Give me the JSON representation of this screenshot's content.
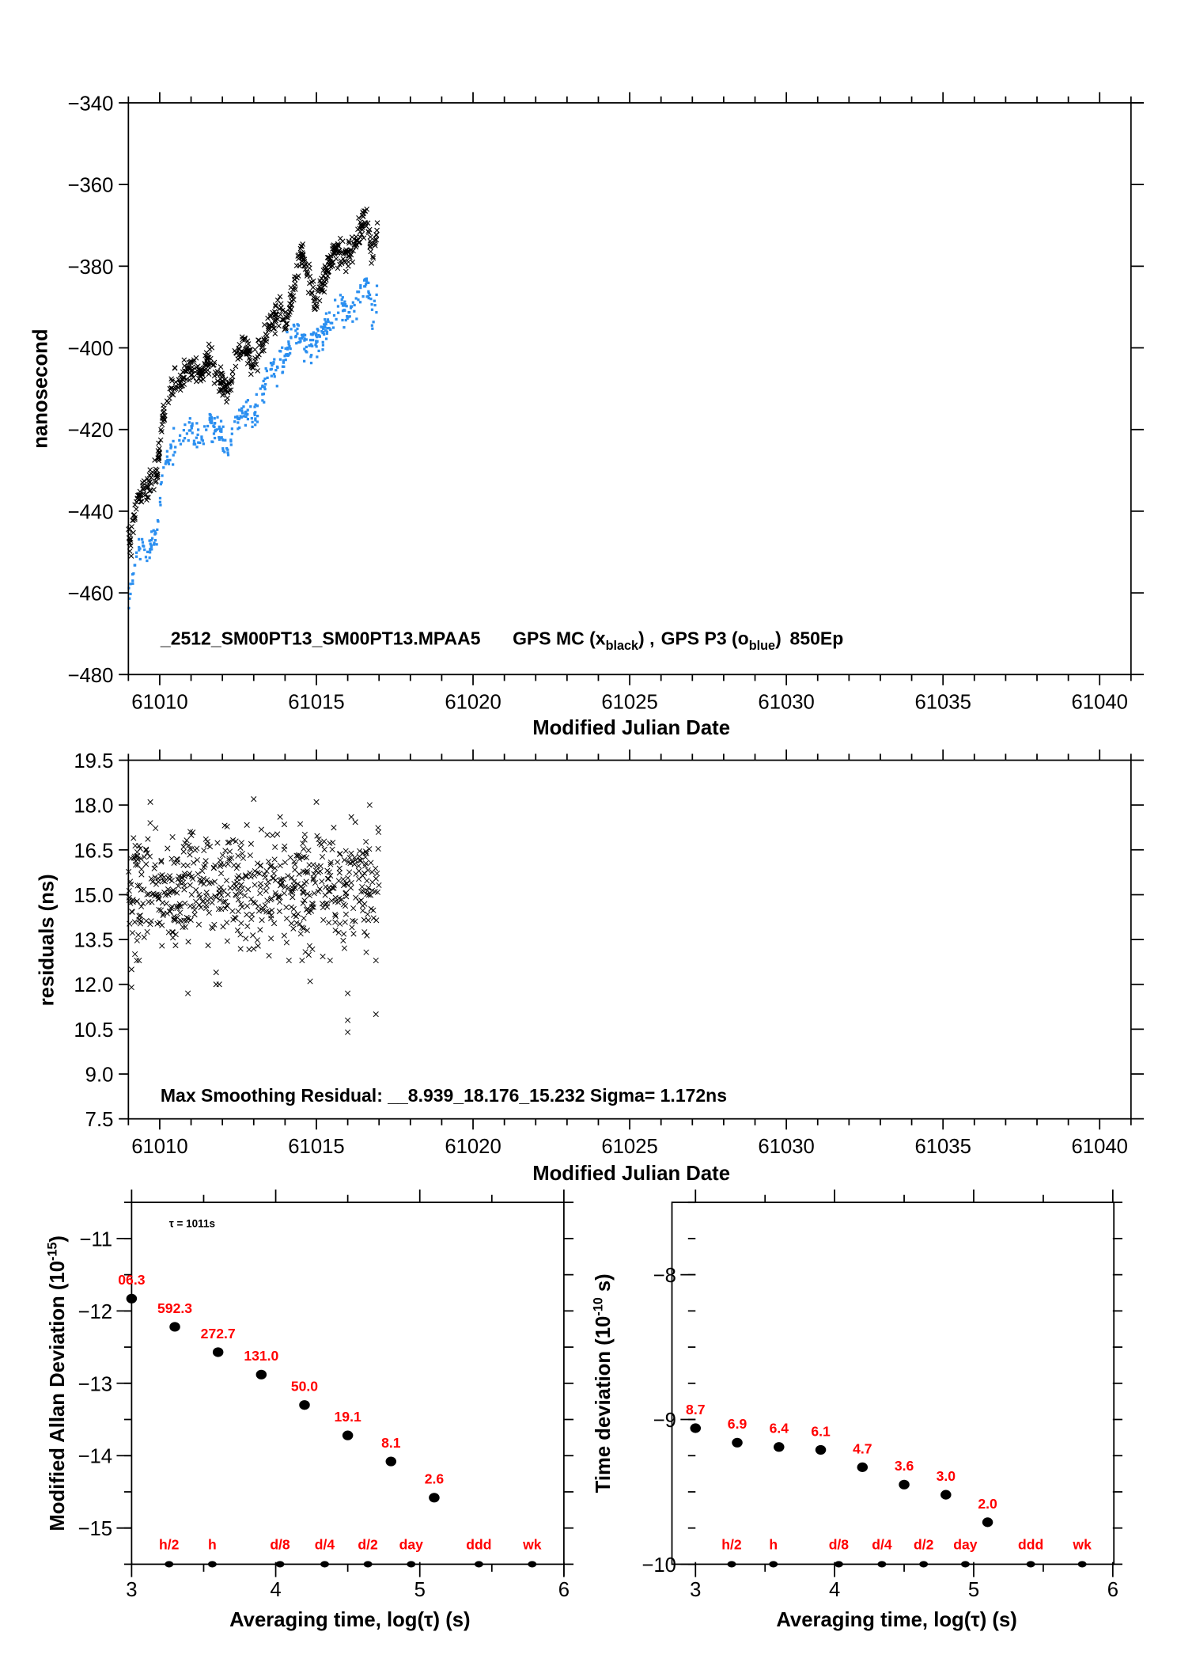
{
  "chart_data": [
    {
      "type": "scatter",
      "id": "clock-offset",
      "title": "",
      "annotation": "_2512_SM00PT13_SM00PT13.MPAA5    GPS MC (x",
      "annotation_parts": {
        "station": "_2512_SM00PT13_SM00PT13.MPAA5",
        "series1_prefix": "GPS MC (x",
        "series1_sub": "black",
        "series1_suffix": ") ,",
        "series2_prefix": "GPS P3 (o",
        "series2_sub": "blue",
        "series2_suffix": ")",
        "tag": "850Ep"
      },
      "xlabel": "Modified Julian Date",
      "ylabel": "nanosecond",
      "xlim": [
        61009,
        61041
      ],
      "ylim": [
        -480,
        -340
      ],
      "xticks": [
        61010,
        61015,
        61020,
        61025,
        61030,
        61035,
        61040
      ],
      "xtick_labels": [
        "61010",
        "61015",
        "61020",
        "61025",
        "61030",
        "61035",
        "61040"
      ],
      "yticks": [
        -340,
        -360,
        -380,
        -400,
        -420,
        -440,
        -460,
        -480
      ],
      "ytick_labels": [
        "−340",
        "−360",
        "−380",
        "−400",
        "−420",
        "−440",
        "−460",
        "−480"
      ],
      "series": [
        {
          "name": "GPS MC",
          "marker": "x",
          "color": "#000000",
          "trend": [
            [
              61009.0,
              -449
            ],
            [
              61009.3,
              -437
            ],
            [
              61009.6,
              -434
            ],
            [
              61009.9,
              -432
            ],
            [
              61010.1,
              -417
            ],
            [
              61010.4,
              -409
            ],
            [
              61010.7,
              -408
            ],
            [
              61011.0,
              -405
            ],
            [
              61011.3,
              -407
            ],
            [
              61011.6,
              -402
            ],
            [
              61011.9,
              -408
            ],
            [
              61012.2,
              -411
            ],
            [
              61012.4,
              -404
            ],
            [
              61012.7,
              -399
            ],
            [
              61013.0,
              -404
            ],
            [
              61013.3,
              -398
            ],
            [
              61013.5,
              -395
            ],
            [
              61013.8,
              -390
            ],
            [
              61014.0,
              -394
            ],
            [
              61014.3,
              -385
            ],
            [
              61014.5,
              -376
            ],
            [
              61014.8,
              -384
            ],
            [
              61015.0,
              -390
            ],
            [
              61015.3,
              -381
            ],
            [
              61015.6,
              -376
            ],
            [
              61015.8,
              -378
            ],
            [
              61016.1,
              -376
            ],
            [
              61016.3,
              -374
            ],
            [
              61016.6,
              -367
            ],
            [
              61016.8,
              -378
            ],
            [
              61016.95,
              -370
            ]
          ]
        },
        {
          "name": "GPS P3",
          "marker": "o",
          "color": "#2b8ff0",
          "trend": [
            [
              61009.0,
              -461
            ],
            [
              61009.3,
              -450
            ],
            [
              61009.6,
              -449
            ],
            [
              61009.9,
              -446
            ],
            [
              61010.1,
              -430
            ],
            [
              61010.4,
              -426
            ],
            [
              61010.7,
              -422
            ],
            [
              61011.0,
              -420
            ],
            [
              61011.3,
              -423
            ],
            [
              61011.6,
              -419
            ],
            [
              61011.9,
              -421
            ],
            [
              61012.2,
              -426
            ],
            [
              61012.4,
              -418
            ],
            [
              61012.7,
              -415
            ],
            [
              61013.0,
              -418
            ],
            [
              61013.3,
              -411
            ],
            [
              61013.5,
              -404
            ],
            [
              61013.8,
              -406
            ],
            [
              61014.0,
              -402
            ],
            [
              61014.3,
              -395
            ],
            [
              61014.5,
              -397
            ],
            [
              61014.8,
              -400
            ],
            [
              61015.0,
              -398
            ],
            [
              61015.3,
              -396
            ],
            [
              61015.6,
              -392
            ],
            [
              61015.8,
              -390
            ],
            [
              61016.1,
              -391
            ],
            [
              61016.3,
              -389
            ],
            [
              61016.6,
              -383
            ],
            [
              61016.8,
              -393
            ],
            [
              61016.95,
              -386
            ]
          ]
        }
      ]
    },
    {
      "type": "scatter",
      "id": "residuals",
      "annotation": "Max Smoothing Residual: __8.939_18.176_15.232  Sigma= 1.172ns",
      "xlabel": "Modified Julian Date",
      "ylabel": "residuals (ns)",
      "xlim": [
        61009,
        61041
      ],
      "ylim": [
        7.5,
        19.5
      ],
      "xticks": [
        61010,
        61015,
        61020,
        61025,
        61030,
        61035,
        61040
      ],
      "xtick_labels": [
        "61010",
        "61015",
        "61020",
        "61025",
        "61030",
        "61035",
        "61040"
      ],
      "yticks": [
        19.5,
        18.0,
        16.5,
        15.0,
        13.5,
        12.0,
        10.5,
        9.0,
        7.5
      ],
      "ytick_labels": [
        "19.5",
        "18.0",
        "16.5",
        "15.0",
        "13.5",
        "12.0",
        "10.5",
        "9.0",
        "7.5"
      ],
      "series": [
        {
          "name": "residuals",
          "marker": "x",
          "color": "#000000",
          "mean": 15.2,
          "sigma": 1.172,
          "x_range": [
            61009.0,
            61017.0
          ],
          "outliers": [
            [
              61009.1,
              12.5
            ],
            [
              61009.1,
              11.9
            ],
            [
              61010.9,
              11.7
            ],
            [
              61011.8,
              12.4
            ],
            [
              61011.8,
              12.0
            ],
            [
              61011.9,
              12.0
            ],
            [
              61014.8,
              12.1
            ],
            [
              61016.0,
              11.7
            ],
            [
              61016.0,
              10.8
            ],
            [
              61016.0,
              10.4
            ],
            [
              61016.9,
              11.0
            ],
            [
              61016.9,
              12.8
            ],
            [
              61009.7,
              18.1
            ],
            [
              61013.0,
              18.2
            ],
            [
              61015.0,
              18.1
            ],
            [
              61016.7,
              18.0
            ]
          ]
        }
      ]
    },
    {
      "type": "scatter",
      "id": "mdev",
      "xlabel": "Averaging time, log(τ) (s)",
      "ylabel_main": "Modified Allan Deviation (10",
      "ylabel_sup": "-15",
      "ylabel_end": ")",
      "tau_note": "τ = 1011s",
      "xlim": [
        3,
        6
      ],
      "ylim": [
        -15.5,
        -10.5
      ],
      "xticks": [
        3,
        4,
        5,
        6
      ],
      "xtick_labels": [
        "3",
        "4",
        "5",
        "6"
      ],
      "yticks": [
        -11,
        -12,
        -13,
        -14,
        -15
      ],
      "ytick_labels": [
        "−11",
        "−12",
        "−13",
        "−14",
        "−15"
      ],
      "x": [
        3.0,
        3.3,
        3.6,
        3.9,
        4.2,
        4.5,
        4.8,
        5.1
      ],
      "y": [
        -11.83,
        -12.22,
        -12.57,
        -12.88,
        -13.3,
        -13.72,
        -14.08,
        -14.58
      ],
      "labels": [
        "06.3",
        "592.3",
        "272.7",
        "131.0",
        "50.0",
        "19.1",
        "8.1",
        "2.6"
      ],
      "reference_marks": [
        {
          "label": "h/2",
          "x": 3.26
        },
        {
          "label": "h",
          "x": 3.56
        },
        {
          "label": "d/8",
          "x": 4.03
        },
        {
          "label": "d/4",
          "x": 4.34
        },
        {
          "label": "d/2",
          "x": 4.64
        },
        {
          "label": "day",
          "x": 4.94
        },
        {
          "label": "ddd",
          "x": 5.41
        },
        {
          "label": "wk",
          "x": 5.78
        }
      ]
    },
    {
      "type": "scatter",
      "id": "tdev",
      "xlabel": "Averaging time, log(τ) (s)",
      "ylabel_main": "Time deviation (10",
      "ylabel_sup": "-10",
      "ylabel_end": " s)",
      "xlim": [
        3,
        6
      ],
      "ylim": [
        -10,
        -7.5
      ],
      "xticks": [
        3,
        4,
        5,
        6
      ],
      "xtick_labels": [
        "3",
        "4",
        "5",
        "6"
      ],
      "yticks": [
        -8,
        -9,
        -10
      ],
      "ytick_labels": [
        "−8",
        "−9",
        "−10"
      ],
      "x": [
        3.0,
        3.3,
        3.6,
        3.9,
        4.2,
        4.5,
        4.8,
        5.1
      ],
      "y": [
        -9.06,
        -9.16,
        -9.19,
        -9.21,
        -9.33,
        -9.45,
        -9.52,
        -9.71
      ],
      "labels": [
        "8.7",
        "6.9",
        "6.4",
        "6.1",
        "4.7",
        "3.6",
        "3.0",
        "2.0"
      ],
      "reference_marks": [
        {
          "label": "h/2",
          "x": 3.26
        },
        {
          "label": "h",
          "x": 3.56
        },
        {
          "label": "d/8",
          "x": 4.03
        },
        {
          "label": "d/4",
          "x": 4.34
        },
        {
          "label": "d/2",
          "x": 4.64
        },
        {
          "label": "day",
          "x": 4.94
        },
        {
          "label": "ddd",
          "x": 5.41
        },
        {
          "label": "wk",
          "x": 5.78
        }
      ]
    }
  ]
}
